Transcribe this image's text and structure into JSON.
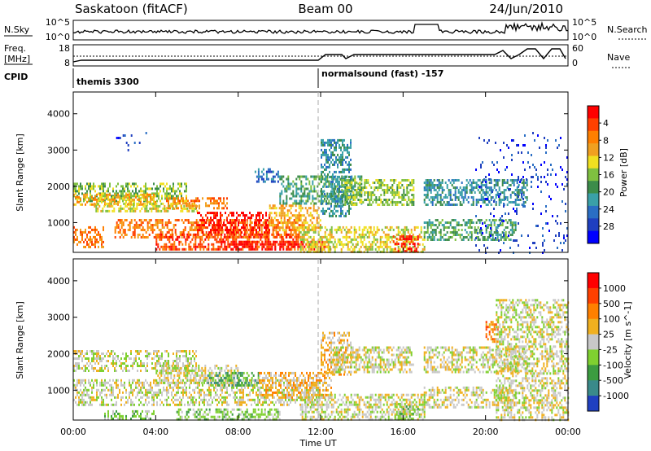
{
  "header": {
    "station": "Saskatoon (fitACF)",
    "beam": "Beam 00",
    "date": "24/Jun/2010"
  },
  "noise_panel": {
    "left_label": "N.Sky",
    "right_label": "N.Search",
    "left_ticks": [
      "10^5",
      "10^0"
    ],
    "right_ticks": [
      "10^5",
      "10^0"
    ]
  },
  "freq_panel": {
    "left_label_1": "Freq.",
    "left_label_2": "[MHz]",
    "left_ticks": [
      "18",
      "8"
    ],
    "right_label": "Nave",
    "right_ticks": [
      "60",
      "0"
    ]
  },
  "cpid": {
    "label": "CPID",
    "modes": [
      "themis 3300",
      "normalsound (fast) -157"
    ],
    "mode_start_hours": [
      0,
      12
    ]
  },
  "chart_data": [
    {
      "type": "heatmap",
      "title": "",
      "xlabel": "",
      "ylabel": "Slant Range [km]",
      "xlim": [
        0,
        24
      ],
      "ylim": [
        180,
        4600
      ],
      "y_ticks": [
        "1000",
        "2000",
        "3000",
        "4000"
      ],
      "colorbar": {
        "label": "Power [dB]",
        "ticks": [
          "4",
          "8",
          "12",
          "16",
          "20",
          "24",
          "28"
        ],
        "colors": [
          "#0000ff",
          "#1f3fbf",
          "#2a6ec4",
          "#3aa0a8",
          "#3c8c4a",
          "#7fc040",
          "#f0e020",
          "#f0a020",
          "#ff7f00",
          "#ff4000",
          "#ff0000"
        ]
      },
      "regions": [
        {
          "t0": 0.0,
          "t1": 5.5,
          "r0": 1600,
          "r1": 2100,
          "level": 5
        },
        {
          "t0": 0.0,
          "t1": 4.0,
          "r0": 1500,
          "r1": 1800,
          "level": 7
        },
        {
          "t0": 4.5,
          "t1": 7.5,
          "r0": 1400,
          "r1": 1700,
          "level": 8
        },
        {
          "t0": 1.0,
          "t1": 6.0,
          "r0": 1300,
          "r1": 1550,
          "level": 6
        },
        {
          "t0": 0.0,
          "t1": 1.5,
          "r0": 350,
          "r1": 900,
          "level": 8
        },
        {
          "t0": 2.0,
          "t1": 11.0,
          "r0": 600,
          "r1": 1100,
          "level": 8
        },
        {
          "t0": 6.0,
          "t1": 9.5,
          "r0": 750,
          "r1": 1300,
          "level": 10
        },
        {
          "t0": 4.0,
          "t1": 11.0,
          "r0": 250,
          "r1": 700,
          "level": 9
        },
        {
          "t0": 7.0,
          "t1": 12.5,
          "r0": 250,
          "r1": 500,
          "level": 10
        },
        {
          "t0": 9.5,
          "t1": 12.0,
          "r0": 800,
          "r1": 1500,
          "level": 7
        },
        {
          "t0": 10.0,
          "t1": 14.0,
          "r0": 1500,
          "r1": 2300,
          "level": 4
        },
        {
          "t0": 12.0,
          "t1": 13.5,
          "r0": 1200,
          "r1": 3300,
          "level": 3
        },
        {
          "t0": 13.0,
          "t1": 16.5,
          "r0": 1500,
          "r1": 2200,
          "level": 5
        },
        {
          "t0": 11.0,
          "t1": 17.0,
          "r0": 200,
          "r1": 900,
          "level": 6
        },
        {
          "t0": 15.5,
          "t1": 16.7,
          "r0": 200,
          "r1": 650,
          "level": 10
        },
        {
          "t0": 17.0,
          "t1": 21.5,
          "r0": 500,
          "r1": 1100,
          "level": 4
        },
        {
          "t0": 17.0,
          "t1": 22.0,
          "r0": 1500,
          "r1": 2200,
          "level": 3
        },
        {
          "t0": 19.5,
          "t1": 24.0,
          "r0": 200,
          "r1": 3500,
          "level": 1
        },
        {
          "t0": 2.0,
          "t1": 3.8,
          "r0": 3000,
          "r1": 3500,
          "level": 1
        },
        {
          "t0": 8.8,
          "t1": 10.0,
          "r0": 2100,
          "r1": 2500,
          "level": 2
        }
      ]
    },
    {
      "type": "heatmap",
      "title": "",
      "xlabel": "Time UT",
      "ylabel": "Slant Range [km]",
      "xlim": [
        0,
        24
      ],
      "ylim": [
        180,
        4600
      ],
      "x_ticks": [
        "00:00",
        "04:00",
        "08:00",
        "12:00",
        "16:00",
        "20:00",
        "00:00"
      ],
      "y_ticks": [
        "1000",
        "2000",
        "3000",
        "4000"
      ],
      "colorbar": {
        "label": "Velocity [m s^-1]",
        "ticks": [
          "1000",
          "500",
          "100",
          "25",
          "-25",
          "-100",
          "-500",
          "-1000"
        ],
        "colors": [
          "#2040c0",
          "#3a8a8a",
          "#3c9c40",
          "#7fd030",
          "#c8c8c8",
          "#f0b020",
          "#ff8000",
          "#ff4000",
          "#ff0000"
        ]
      },
      "regions": [
        {
          "t0": 0.0,
          "t1": 6.0,
          "r0": 1500,
          "r1": 2100,
          "level": 4
        },
        {
          "t0": 0.0,
          "t1": 12.0,
          "r0": 600,
          "r1": 1300,
          "level": 4
        },
        {
          "t0": 4.0,
          "t1": 8.0,
          "r0": 1200,
          "r1": 1700,
          "level": 4
        },
        {
          "t0": 6.5,
          "t1": 9.0,
          "r0": 1100,
          "r1": 1500,
          "level": 2
        },
        {
          "t0": 1.5,
          "t1": 4.0,
          "r0": 200,
          "r1": 450,
          "level": 3
        },
        {
          "t0": 5.0,
          "t1": 10.0,
          "r0": 200,
          "r1": 500,
          "level": 3
        },
        {
          "t0": 9.0,
          "t1": 12.5,
          "r0": 800,
          "r1": 1500,
          "level": 5
        },
        {
          "t0": 12.0,
          "t1": 13.5,
          "r0": 1400,
          "r1": 2600,
          "level": 5
        },
        {
          "t0": 12.5,
          "t1": 16.5,
          "r0": 1500,
          "r1": 2200,
          "level": 4
        },
        {
          "t0": 11.0,
          "t1": 17.0,
          "r0": 200,
          "r1": 900,
          "level": 4
        },
        {
          "t0": 15.5,
          "t1": 16.7,
          "r0": 200,
          "r1": 650,
          "level": 3
        },
        {
          "t0": 17.0,
          "t1": 21.5,
          "r0": 500,
          "r1": 1100,
          "level": 4
        },
        {
          "t0": 17.0,
          "t1": 22.0,
          "r0": 1500,
          "r1": 2200,
          "level": 4
        },
        {
          "t0": 20.0,
          "t1": 20.6,
          "r0": 2300,
          "r1": 2900,
          "level": 6
        },
        {
          "t0": 20.5,
          "t1": 24.0,
          "r0": 200,
          "r1": 3500,
          "level": 4
        }
      ]
    }
  ]
}
